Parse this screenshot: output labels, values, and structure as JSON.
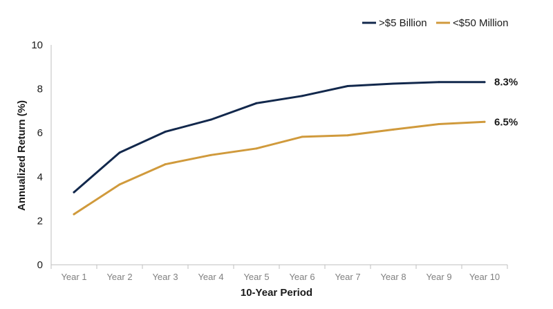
{
  "chart_data": {
    "type": "line",
    "categories": [
      "Year 1",
      "Year 2",
      "Year 3",
      "Year 4",
      "Year 5",
      "Year 6",
      "Year 7",
      "Year 8",
      "Year 9",
      "Year 10"
    ],
    "series": [
      {
        "name": ">$5 Billion",
        "color": "#12284c",
        "values": [
          3.3,
          5.1,
          6.05,
          6.6,
          7.35,
          7.68,
          8.13,
          8.24,
          8.31,
          8.31
        ],
        "end_label": "8.3%"
      },
      {
        "name": "<$50 Million",
        "color": "#d09a3c",
        "values": [
          2.3,
          3.65,
          4.57,
          4.99,
          5.29,
          5.82,
          5.89,
          6.15,
          6.4,
          6.5
        ],
        "end_label": "6.5%"
      }
    ],
    "xlabel": "10-Year Period",
    "ylabel": "Annualized Return (%)",
    "ylim": [
      0,
      10
    ],
    "yticks": [
      "0",
      "2",
      "4",
      "6",
      "8",
      "10"
    ],
    "grid": false,
    "legend_position": "top-right"
  }
}
